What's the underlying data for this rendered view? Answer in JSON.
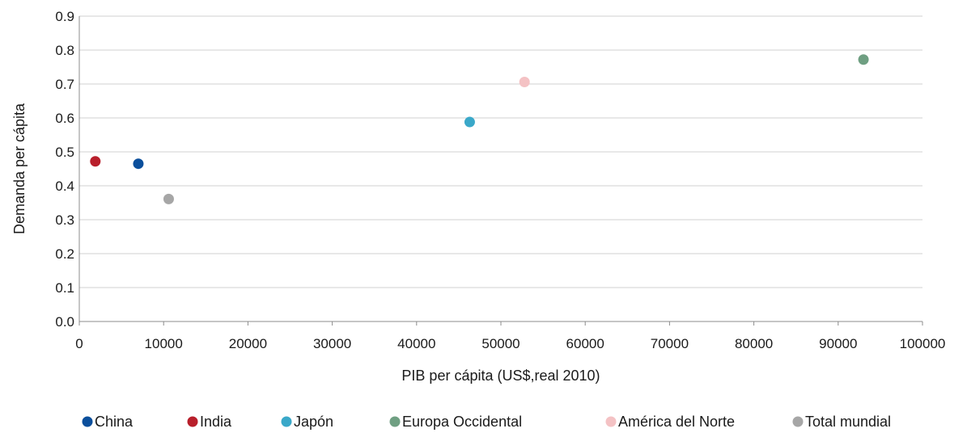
{
  "chart_data": {
    "type": "scatter",
    "xlabel": "PIB per cápita (US$,real 2010)",
    "ylabel": "Demanda per cápita",
    "xlim": [
      0,
      100000
    ],
    "ylim": [
      0,
      0.9
    ],
    "xticks": [
      0,
      10000,
      20000,
      30000,
      40000,
      50000,
      60000,
      70000,
      80000,
      90000,
      100000
    ],
    "xtick_labels": [
      "0",
      "10000",
      "20000",
      "30000",
      "40000",
      "50000",
      "60000",
      "70000",
      "80000",
      "90000",
      "100000"
    ],
    "yticks": [
      0,
      0.1,
      0.2,
      0.3,
      0.4,
      0.5,
      0.6,
      0.7,
      0.8,
      0.9
    ],
    "ytick_labels": [
      "0.0",
      "0.1",
      "0.2",
      "0.3",
      "0.4",
      "0.5",
      "0.6",
      "0.7",
      "0.8",
      "0.9"
    ],
    "grid": "horizontal",
    "legend_position": "bottom",
    "series": [
      {
        "name": "China",
        "color": "#0b4f9c",
        "x": 7000,
        "y": 0.465
      },
      {
        "name": "India",
        "color": "#b81f2b",
        "x": 1900,
        "y": 0.472
      },
      {
        "name": "Japón",
        "color": "#3aa8c9",
        "x": 46300,
        "y": 0.588
      },
      {
        "name": "Europa Occidental",
        "color": "#6f9f82",
        "x": 93000,
        "y": 0.772
      },
      {
        "name": "América del Norte",
        "color": "#f4c2c4",
        "x": 52800,
        "y": 0.706
      },
      {
        "name": "Total mundial",
        "color": "#a6a6a6",
        "x": 10600,
        "y": 0.361
      }
    ]
  }
}
